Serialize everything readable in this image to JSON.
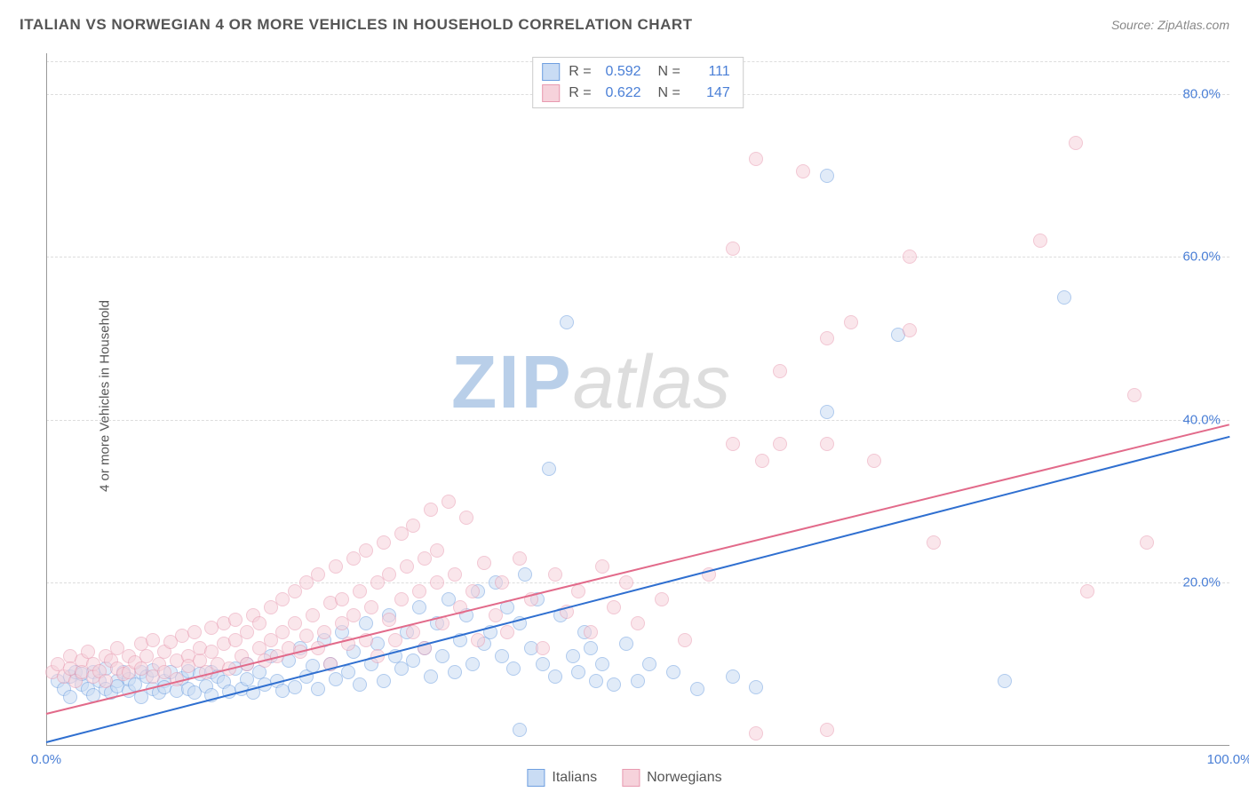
{
  "title": "ITALIAN VS NORWEGIAN 4 OR MORE VEHICLES IN HOUSEHOLD CORRELATION CHART",
  "source_label": "Source: ZipAtlas.com",
  "ylabel": "4 or more Vehicles in Household",
  "watermark": {
    "part1": "ZIP",
    "part2": "atlas"
  },
  "chart": {
    "type": "scatter",
    "xlim": [
      0,
      100
    ],
    "ylim": [
      0,
      85
    ],
    "xticks": [
      {
        "v": 0,
        "l": "0.0%"
      },
      {
        "v": 100,
        "l": "100.0%"
      }
    ],
    "yticks": [
      {
        "v": 20,
        "l": "20.0%"
      },
      {
        "v": 40,
        "l": "40.0%"
      },
      {
        "v": 60,
        "l": "60.0%"
      },
      {
        "v": 80,
        "l": "80.0%"
      }
    ],
    "y_gridlines": [
      20,
      40,
      60,
      80,
      84
    ],
    "background_color": "#ffffff",
    "grid_color": "#dddddd",
    "axis_color": "#999999",
    "tick_label_color": "#4a7fd6",
    "marker_radius": 8,
    "marker_stroke_width": 1.2,
    "series": [
      {
        "name": "Italians",
        "fill": "#c9dcf4",
        "stroke": "#6f9fe0",
        "fill_opacity": 0.55,
        "R": "0.592",
        "N": "111",
        "regression": {
          "x0": 0,
          "y0": 0.5,
          "x1": 100,
          "y1": 38,
          "color": "#2f6fd0",
          "width": 2
        },
        "points": [
          [
            1,
            8
          ],
          [
            1.5,
            7
          ],
          [
            2,
            8.5
          ],
          [
            2,
            6
          ],
          [
            2.5,
            9
          ],
          [
            3,
            7.5
          ],
          [
            3,
            8.8
          ],
          [
            3.5,
            7
          ],
          [
            4,
            9
          ],
          [
            4,
            6.2
          ],
          [
            4.5,
            8
          ],
          [
            5,
            7
          ],
          [
            5,
            9.5
          ],
          [
            5.5,
            6.5
          ],
          [
            6,
            8
          ],
          [
            6,
            7.3
          ],
          [
            6.5,
            9
          ],
          [
            7,
            6.8
          ],
          [
            7,
            8.2
          ],
          [
            7.5,
            7.5
          ],
          [
            8,
            9
          ],
          [
            8,
            6
          ],
          [
            8.5,
            8.5
          ],
          [
            9,
            7
          ],
          [
            9,
            9.3
          ],
          [
            9.5,
            6.5
          ],
          [
            10,
            8
          ],
          [
            10,
            7.2
          ],
          [
            10.5,
            9
          ],
          [
            11,
            6.8
          ],
          [
            11.5,
            8.3
          ],
          [
            12,
            7
          ],
          [
            12,
            9.2
          ],
          [
            12.5,
            6.5
          ],
          [
            13,
            8.8
          ],
          [
            13.5,
            7.3
          ],
          [
            14,
            9
          ],
          [
            14,
            6.2
          ],
          [
            14.5,
            8.5
          ],
          [
            15,
            7.8
          ],
          [
            15.5,
            6.7
          ],
          [
            16,
            9.5
          ],
          [
            16.5,
            7
          ],
          [
            17,
            8.2
          ],
          [
            17,
            10
          ],
          [
            17.5,
            6.5
          ],
          [
            18,
            9
          ],
          [
            18.5,
            7.5
          ],
          [
            19,
            11
          ],
          [
            19.5,
            8
          ],
          [
            20,
            6.8
          ],
          [
            20.5,
            10.5
          ],
          [
            21,
            7.2
          ],
          [
            21.5,
            12
          ],
          [
            22,
            8.5
          ],
          [
            22.5,
            9.8
          ],
          [
            23,
            7
          ],
          [
            23.5,
            13
          ],
          [
            24,
            10
          ],
          [
            24.5,
            8.2
          ],
          [
            25,
            14
          ],
          [
            25.5,
            9
          ],
          [
            26,
            11.5
          ],
          [
            26.5,
            7.5
          ],
          [
            27,
            15
          ],
          [
            27.5,
            10
          ],
          [
            28,
            12.5
          ],
          [
            28.5,
            8
          ],
          [
            29,
            16
          ],
          [
            29.5,
            11
          ],
          [
            30,
            9.5
          ],
          [
            30.5,
            14
          ],
          [
            31,
            10.5
          ],
          [
            31.5,
            17
          ],
          [
            32,
            12
          ],
          [
            32.5,
            8.5
          ],
          [
            33,
            15
          ],
          [
            33.5,
            11
          ],
          [
            34,
            18
          ],
          [
            34.5,
            9
          ],
          [
            35,
            13
          ],
          [
            35.5,
            16
          ],
          [
            36,
            10
          ],
          [
            36.5,
            19
          ],
          [
            37,
            12.5
          ],
          [
            37.5,
            14
          ],
          [
            38,
            20
          ],
          [
            38.5,
            11
          ],
          [
            39,
            17
          ],
          [
            39.5,
            9.5
          ],
          [
            40,
            15
          ],
          [
            40,
            2
          ],
          [
            40.5,
            21
          ],
          [
            41,
            12
          ],
          [
            41.5,
            18
          ],
          [
            42,
            10
          ],
          [
            42.5,
            34
          ],
          [
            43,
            8.5
          ],
          [
            43.5,
            16
          ],
          [
            44,
            52
          ],
          [
            44.5,
            11
          ],
          [
            45,
            9
          ],
          [
            45.5,
            14
          ],
          [
            46,
            12
          ],
          [
            46.5,
            8
          ],
          [
            47,
            10
          ],
          [
            48,
            7.5
          ],
          [
            49,
            12.5
          ],
          [
            50,
            8
          ],
          [
            51,
            10
          ],
          [
            53,
            9
          ],
          [
            55,
            7
          ],
          [
            58,
            8.5
          ],
          [
            60,
            7.2
          ],
          [
            66,
            41
          ],
          [
            66,
            70
          ],
          [
            72,
            50.5
          ],
          [
            81,
            8
          ],
          [
            86,
            55
          ]
        ]
      },
      {
        "name": "Norwegians",
        "fill": "#f6d2db",
        "stroke": "#e89ab0",
        "fill_opacity": 0.55,
        "R": "0.622",
        "N": "147",
        "regression": {
          "x0": 0,
          "y0": 4,
          "x1": 100,
          "y1": 39.5,
          "color": "#e26a8a",
          "width": 2
        },
        "points": [
          [
            0.5,
            9
          ],
          [
            1,
            10
          ],
          [
            1.5,
            8.5
          ],
          [
            2,
            11
          ],
          [
            2,
            9.5
          ],
          [
            2.5,
            8
          ],
          [
            3,
            10.5
          ],
          [
            3,
            9
          ],
          [
            3.5,
            11.5
          ],
          [
            4,
            8.5
          ],
          [
            4,
            10
          ],
          [
            4.5,
            9.2
          ],
          [
            5,
            11
          ],
          [
            5,
            8
          ],
          [
            5.5,
            10.5
          ],
          [
            6,
            9.5
          ],
          [
            6,
            12
          ],
          [
            6.5,
            8.8
          ],
          [
            7,
            11
          ],
          [
            7,
            9
          ],
          [
            7.5,
            10.2
          ],
          [
            8,
            12.5
          ],
          [
            8,
            9.5
          ],
          [
            8.5,
            11
          ],
          [
            9,
            8.5
          ],
          [
            9,
            13
          ],
          [
            9.5,
            10
          ],
          [
            10,
            11.5
          ],
          [
            10,
            9
          ],
          [
            10.5,
            12.8
          ],
          [
            11,
            10.5
          ],
          [
            11,
            8.2
          ],
          [
            11.5,
            13.5
          ],
          [
            12,
            11
          ],
          [
            12,
            9.8
          ],
          [
            12.5,
            14
          ],
          [
            13,
            10.5
          ],
          [
            13,
            12
          ],
          [
            13.5,
            9
          ],
          [
            14,
            14.5
          ],
          [
            14,
            11.5
          ],
          [
            14.5,
            10
          ],
          [
            15,
            15
          ],
          [
            15,
            12.5
          ],
          [
            15.5,
            9.5
          ],
          [
            16,
            13
          ],
          [
            16,
            15.5
          ],
          [
            16.5,
            11
          ],
          [
            17,
            14
          ],
          [
            17,
            10
          ],
          [
            17.5,
            16
          ],
          [
            18,
            12
          ],
          [
            18,
            15
          ],
          [
            18.5,
            10.5
          ],
          [
            19,
            17
          ],
          [
            19,
            13
          ],
          [
            19.5,
            11
          ],
          [
            20,
            18
          ],
          [
            20,
            14
          ],
          [
            20.5,
            12
          ],
          [
            21,
            19
          ],
          [
            21,
            15
          ],
          [
            21.5,
            11.5
          ],
          [
            22,
            20
          ],
          [
            22,
            13.5
          ],
          [
            22.5,
            16
          ],
          [
            23,
            12
          ],
          [
            23,
            21
          ],
          [
            23.5,
            14
          ],
          [
            24,
            17.5
          ],
          [
            24,
            10
          ],
          [
            24.5,
            22
          ],
          [
            25,
            15
          ],
          [
            25,
            18
          ],
          [
            25.5,
            12.5
          ],
          [
            26,
            23
          ],
          [
            26,
            16
          ],
          [
            26.5,
            19
          ],
          [
            27,
            13
          ],
          [
            27,
            24
          ],
          [
            27.5,
            17
          ],
          [
            28,
            20
          ],
          [
            28,
            11
          ],
          [
            28.5,
            25
          ],
          [
            29,
            15.5
          ],
          [
            29,
            21
          ],
          [
            29.5,
            13
          ],
          [
            30,
            26
          ],
          [
            30,
            18
          ],
          [
            30.5,
            22
          ],
          [
            31,
            14
          ],
          [
            31,
            27
          ],
          [
            31.5,
            19
          ],
          [
            32,
            23
          ],
          [
            32,
            12
          ],
          [
            32.5,
            29
          ],
          [
            33,
            20
          ],
          [
            33,
            24
          ],
          [
            33.5,
            15
          ],
          [
            34,
            30
          ],
          [
            34.5,
            21
          ],
          [
            35,
            17
          ],
          [
            35.5,
            28
          ],
          [
            36,
            19
          ],
          [
            36.5,
            13
          ],
          [
            37,
            22.5
          ],
          [
            38,
            16
          ],
          [
            38.5,
            20
          ],
          [
            39,
            14
          ],
          [
            40,
            23
          ],
          [
            41,
            18
          ],
          [
            42,
            12
          ],
          [
            43,
            21
          ],
          [
            44,
            16.5
          ],
          [
            45,
            19
          ],
          [
            46,
            14
          ],
          [
            47,
            22
          ],
          [
            48,
            17
          ],
          [
            49,
            20
          ],
          [
            50,
            15
          ],
          [
            52,
            18
          ],
          [
            54,
            13
          ],
          [
            56,
            21
          ],
          [
            58,
            37
          ],
          [
            58,
            61
          ],
          [
            60,
            1.5
          ],
          [
            60,
            72
          ],
          [
            60.5,
            35
          ],
          [
            62,
            37
          ],
          [
            62,
            46
          ],
          [
            64,
            70.5
          ],
          [
            66,
            2
          ],
          [
            66,
            50
          ],
          [
            66,
            37
          ],
          [
            68,
            52
          ],
          [
            70,
            35
          ],
          [
            73,
            60
          ],
          [
            73,
            51
          ],
          [
            75,
            25
          ],
          [
            84,
            62
          ],
          [
            87,
            74
          ],
          [
            88,
            19
          ],
          [
            92,
            43
          ],
          [
            93,
            25
          ]
        ]
      }
    ],
    "legend": {
      "items": [
        {
          "label": "Italians",
          "fill": "#c9dcf4",
          "stroke": "#6f9fe0"
        },
        {
          "label": "Norwegians",
          "fill": "#f6d2db",
          "stroke": "#e89ab0"
        }
      ]
    }
  }
}
